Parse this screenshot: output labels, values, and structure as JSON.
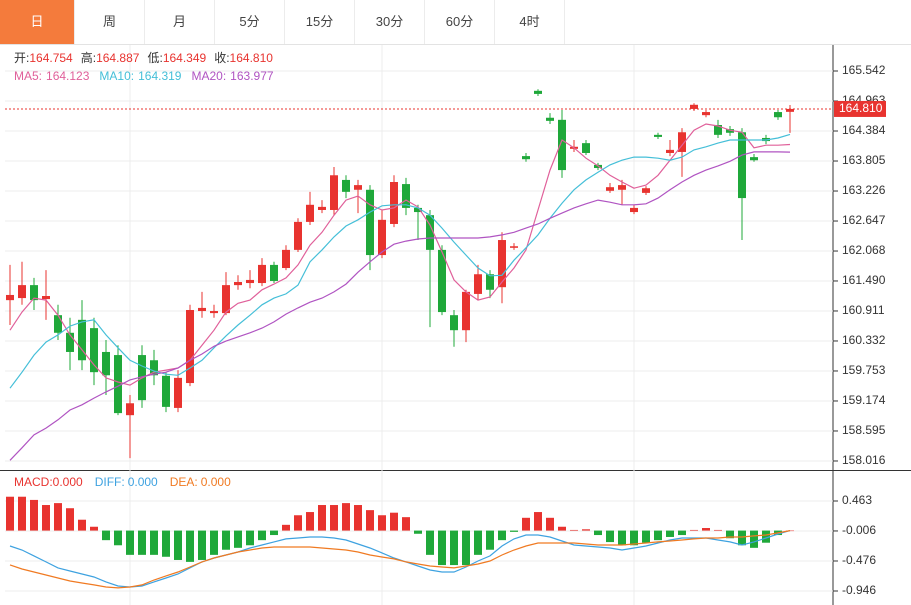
{
  "tabs": {
    "items": [
      "日",
      "周",
      "月",
      "5分",
      "15分",
      "30分",
      "60分",
      "4时"
    ],
    "active": 0
  },
  "chart_data": [
    {
      "type": "candlestick",
      "up_color": "#e8332f",
      "down_color": "#1fa83a",
      "ylim": [
        157.842,
        166.044
      ],
      "yticks": [
        165.542,
        164.963,
        164.384,
        163.805,
        163.226,
        162.647,
        162.068,
        {
          "value": 161.49,
          "label": "161.490"
        },
        160.911,
        160.332,
        159.753,
        159.174,
        158.595,
        158.016
      ],
      "grid": true,
      "ohlc_labels": [
        "开:",
        "高:",
        "低:",
        "收:"
      ],
      "ohlc_value_labels": [
        "164.754",
        "164.887",
        "164.349",
        "164.810"
      ],
      "last_price": {
        "value": 164.81,
        "label": "164.810",
        "color": "#e8332f"
      },
      "candles": [
        [
          161.12,
          161.8,
          160.64,
          161.22
        ],
        [
          161.16,
          161.86,
          161.03,
          161.41
        ],
        [
          161.41,
          161.55,
          160.93,
          161.12
        ],
        [
          161.14,
          161.7,
          160.74,
          161.2
        ],
        [
          160.83,
          161.03,
          160.35,
          160.49
        ],
        [
          160.49,
          160.78,
          159.77,
          160.12
        ],
        [
          160.74,
          161.12,
          159.77,
          159.96
        ],
        [
          160.58,
          160.78,
          159.48,
          159.73
        ],
        [
          160.12,
          160.35,
          159.29,
          159.67
        ],
        [
          160.06,
          160.25,
          158.9,
          158.94
        ],
        [
          158.9,
          159.29,
          158.07,
          159.13
        ],
        [
          160.06,
          160.25,
          159.04,
          159.19
        ],
        [
          159.96,
          160.16,
          159.48,
          159.67
        ],
        [
          159.66,
          159.73,
          158.96,
          159.06
        ],
        [
          159.04,
          159.77,
          158.96,
          159.62
        ],
        [
          159.52,
          161.03,
          159.46,
          160.93
        ],
        [
          160.91,
          161.28,
          160.78,
          160.97
        ],
        [
          160.87,
          161.03,
          160.78,
          160.91
        ],
        [
          160.87,
          161.66,
          160.83,
          161.41
        ],
        [
          161.41,
          161.6,
          161.32,
          161.47
        ],
        [
          161.45,
          161.7,
          161.35,
          161.51
        ],
        [
          161.45,
          161.93,
          161.39,
          161.8
        ],
        [
          161.8,
          161.86,
          161.45,
          161.49
        ],
        [
          161.74,
          162.18,
          161.7,
          162.09
        ],
        [
          162.09,
          162.7,
          162.05,
          162.63
        ],
        [
          162.63,
          163.21,
          162.57,
          162.96
        ],
        [
          162.86,
          163.05,
          162.8,
          162.92
        ],
        [
          162.86,
          163.69,
          162.76,
          163.53
        ],
        [
          163.44,
          163.53,
          163.09,
          163.21
        ],
        [
          163.25,
          163.44,
          162.8,
          163.34
        ],
        [
          163.25,
          163.34,
          161.7,
          161.99
        ],
        [
          161.99,
          162.86,
          161.93,
          162.67
        ],
        [
          162.59,
          163.53,
          162.53,
          163.4
        ],
        [
          163.36,
          163.48,
          162.76,
          162.9
        ],
        [
          162.9,
          162.96,
          162.28,
          162.82
        ],
        [
          162.76,
          162.86,
          160.6,
          162.09
        ],
        [
          162.09,
          162.18,
          160.83,
          160.89
        ],
        [
          160.83,
          160.93,
          160.22,
          160.54
        ],
        [
          160.54,
          161.32,
          160.31,
          161.28
        ],
        [
          161.24,
          161.8,
          161.12,
          161.62
        ],
        [
          161.62,
          161.7,
          161.16,
          161.32
        ],
        [
          161.37,
          162.43,
          161.06,
          162.28
        ],
        [
          162.13,
          162.22,
          162.09,
          162.16
        ],
        [
          163.9,
          163.96,
          163.79,
          163.84
        ],
        [
          165.16,
          165.19,
          165.06,
          165.1
        ],
        [
          164.64,
          164.73,
          164.52,
          164.58
        ],
        [
          164.6,
          164.79,
          163.48,
          163.63
        ],
        [
          164.04,
          164.21,
          163.98,
          164.08
        ],
        [
          164.15,
          164.21,
          163.92,
          163.96
        ],
        [
          163.73,
          163.77,
          163.63,
          163.67
        ],
        [
          163.23,
          163.38,
          163.19,
          163.3
        ],
        [
          163.25,
          163.44,
          162.96,
          163.34
        ],
        [
          162.82,
          162.96,
          162.78,
          162.9
        ],
        [
          163.19,
          163.32,
          163.15,
          163.28
        ],
        [
          164.31,
          164.35,
          164.23,
          164.27
        ],
        [
          163.96,
          164.21,
          163.9,
          164.02
        ],
        [
          163.98,
          164.44,
          163.5,
          164.36
        ],
        [
          164.81,
          164.92,
          164.77,
          164.89
        ],
        [
          164.69,
          164.79,
          164.65,
          164.75
        ],
        [
          164.5,
          164.6,
          164.25,
          164.31
        ],
        [
          164.42,
          164.48,
          164.29,
          164.35
        ],
        [
          164.36,
          164.44,
          162.28,
          163.09
        ],
        [
          163.88,
          163.94,
          163.79,
          163.82
        ],
        [
          164.25,
          164.31,
          164.13,
          164.19
        ],
        [
          164.75,
          164.79,
          164.6,
          164.65
        ],
        [
          164.754,
          164.887,
          164.349,
          164.81
        ]
      ],
      "series": [
        {
          "name": "MA5:",
          "color": "#e0609a",
          "values": [
            160.54,
            160.89,
            161.16,
            161.12,
            160.83,
            160.45,
            160.16,
            159.87,
            159.62,
            159.54,
            159.48,
            159.62,
            159.73,
            159.77,
            159.81,
            159.96,
            160.25,
            160.54,
            160.89,
            161.06,
            161.12,
            161.32,
            161.43,
            161.55,
            161.8,
            162.18,
            162.43,
            162.76,
            163.05,
            163.13,
            162.96,
            162.86,
            162.9,
            163.05,
            162.92,
            162.57,
            162.05,
            161.51,
            161.28,
            161.12,
            161.18,
            161.47,
            161.74,
            162.09,
            162.86,
            163.63,
            164.21,
            164.06,
            163.86,
            163.71,
            163.53,
            163.4,
            163.28,
            163.34,
            163.53,
            163.82,
            164.11,
            164.4,
            164.52,
            164.48,
            164.4,
            164.36,
            164.06,
            164.11,
            164.11,
            164.123
          ]
        },
        {
          "name": "MA10:",
          "color": "#45bfd8",
          "values": [
            159.42,
            159.73,
            160.06,
            160.31,
            160.45,
            160.62,
            160.7,
            160.74,
            160.45,
            160.2,
            159.96,
            159.85,
            159.75,
            159.69,
            159.67,
            159.81,
            159.96,
            160.2,
            160.43,
            160.64,
            160.83,
            161.03,
            161.16,
            161.24,
            161.41,
            161.86,
            162.09,
            162.34,
            162.55,
            162.67,
            162.82,
            162.94,
            162.96,
            162.96,
            162.9,
            162.76,
            162.51,
            162.24,
            161.99,
            161.74,
            161.59,
            161.6,
            161.89,
            162.13,
            162.38,
            162.7,
            162.99,
            163.25,
            163.44,
            163.59,
            163.73,
            163.82,
            163.88,
            163.88,
            163.86,
            163.82,
            163.88,
            164.02,
            164.08,
            164.15,
            164.21,
            164.21,
            164.21,
            164.21,
            164.25,
            164.319
          ]
        },
        {
          "name": "MA20:",
          "color": "#b054c2",
          "values": [
            158.03,
            158.27,
            158.52,
            158.65,
            158.81,
            159.0,
            159.1,
            159.23,
            159.35,
            159.46,
            159.58,
            159.64,
            159.69,
            159.73,
            159.81,
            159.96,
            160.08,
            160.23,
            160.33,
            160.41,
            160.49,
            160.58,
            160.7,
            160.85,
            160.97,
            161.08,
            161.16,
            161.28,
            161.43,
            161.66,
            161.86,
            162.05,
            162.2,
            162.26,
            162.3,
            162.32,
            162.32,
            162.32,
            162.32,
            162.32,
            162.34,
            162.38,
            162.43,
            162.51,
            162.59,
            162.7,
            162.8,
            162.9,
            162.98,
            163.05,
            163.01,
            162.96,
            162.96,
            162.98,
            163.09,
            163.25,
            163.4,
            163.53,
            163.63,
            163.71,
            163.8,
            163.92,
            163.98,
            163.98,
            163.98,
            163.977
          ]
        }
      ]
    },
    {
      "type": "macd",
      "ylim": [
        -1.165,
        0.917
      ],
      "yticks": [
        0.463,
        -0.006,
        -0.476,
        -0.946
      ],
      "histogram": {
        "name": "MACD:",
        "color": "#e8332f",
        "up_color": "#e8332f",
        "down_color": "#1fa83a",
        "last_label": "0.000",
        "values": [
          0.53,
          0.53,
          0.48,
          0.4,
          0.43,
          0.35,
          0.17,
          0.06,
          -0.15,
          -0.23,
          -0.38,
          -0.38,
          -0.38,
          -0.41,
          -0.46,
          -0.49,
          -0.46,
          -0.38,
          -0.3,
          -0.27,
          -0.23,
          -0.15,
          -0.07,
          0.09,
          0.24,
          0.29,
          0.4,
          0.4,
          0.43,
          0.4,
          0.32,
          0.24,
          0.28,
          0.21,
          -0.05,
          -0.38,
          -0.54,
          -0.54,
          -0.54,
          -0.38,
          -0.3,
          -0.15,
          -0.02,
          0.2,
          0.29,
          0.2,
          0.06,
          0.01,
          0.02,
          -0.07,
          -0.18,
          -0.23,
          -0.23,
          -0.19,
          -0.15,
          -0.1,
          -0.07,
          0.01,
          0.04,
          0.01,
          -0.12,
          -0.23,
          -0.27,
          -0.19,
          -0.07,
          0
        ]
      },
      "series": [
        {
          "name": "DIFF:",
          "color": "#3ea2e0",
          "last_label": "0.000",
          "values": [
            -0.241,
            -0.304,
            -0.397,
            -0.491,
            -0.585,
            -0.632,
            -0.679,
            -0.726,
            -0.804,
            -0.867,
            -0.883,
            -0.867,
            -0.804,
            -0.742,
            -0.679,
            -0.585,
            -0.491,
            -0.429,
            -0.382,
            -0.335,
            -0.272,
            -0.225,
            -0.178,
            -0.131,
            -0.116,
            -0.1,
            -0.1,
            -0.116,
            -0.147,
            -0.21,
            -0.272,
            -0.35,
            -0.429,
            -0.491,
            -0.554,
            -0.617,
            -0.648,
            -0.648,
            -0.57,
            -0.476,
            -0.397,
            -0.241,
            -0.131,
            -0.069,
            -0.069,
            -0.1,
            -0.163,
            -0.225,
            -0.241,
            -0.257,
            -0.272,
            -0.304,
            -0.272,
            -0.241,
            -0.194,
            -0.147,
            -0.116,
            -0.116,
            -0.116,
            -0.147,
            -0.178,
            -0.225,
            -0.178,
            -0.116,
            -0.053,
            0
          ]
        },
        {
          "name": "DEA:",
          "color": "#f07a22",
          "last_label": "0.000",
          "values": [
            -0.538,
            -0.601,
            -0.648,
            -0.695,
            -0.742,
            -0.789,
            -0.82,
            -0.851,
            -0.883,
            -0.898,
            -0.883,
            -0.851,
            -0.773,
            -0.71,
            -0.648,
            -0.57,
            -0.491,
            -0.429,
            -0.382,
            -0.335,
            -0.304,
            -0.272,
            -0.257,
            -0.257,
            -0.257,
            -0.257,
            -0.272,
            -0.288,
            -0.304,
            -0.335,
            -0.382,
            -0.413,
            -0.444,
            -0.491,
            -0.523,
            -0.554,
            -0.57,
            -0.585,
            -0.554,
            -0.523,
            -0.476,
            -0.382,
            -0.304,
            -0.241,
            -0.194,
            -0.194,
            -0.194,
            -0.194,
            -0.21,
            -0.225,
            -0.225,
            -0.225,
            -0.21,
            -0.194,
            -0.178,
            -0.163,
            -0.147,
            -0.131,
            -0.116,
            -0.116,
            -0.1,
            -0.1,
            -0.084,
            -0.069,
            -0.037,
            0
          ]
        }
      ]
    }
  ]
}
